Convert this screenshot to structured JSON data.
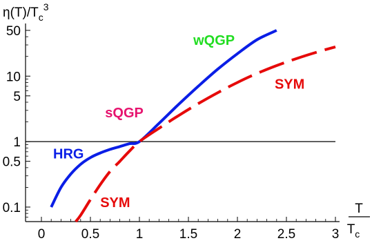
{
  "chart_data": {
    "type": "line",
    "title": "η(T)/T_c³",
    "y_label_text": {
      "main": "η(T)/T",
      "sub": "c",
      "sup": "3"
    },
    "x_label_text": {
      "numerator": "T",
      "denominator": "T",
      "den_sub": "c"
    },
    "x_scale": "linear",
    "y_scale": "log",
    "xlim": [
      0,
      3
    ],
    "ylim": [
      0.06,
      50
    ],
    "grid": false,
    "legend": "none",
    "x_ticks": [
      0,
      0.5,
      1,
      1.5,
      2,
      2.5,
      3
    ],
    "x_tick_labels": [
      "0",
      "0.5",
      "1",
      "1.5",
      "2",
      "2.5",
      "3"
    ],
    "y_ticks": [
      0.1,
      0.5,
      1,
      5,
      10,
      50
    ],
    "y_tick_labels": [
      "0.1",
      "0.5",
      "1",
      "5",
      "10",
      "50"
    ],
    "reference_line": {
      "y": 1,
      "color": "#000000"
    },
    "series": [
      {
        "color": "#0a1ee6",
        "style": "solid",
        "x": [
          0.1,
          0.2,
          0.3,
          0.4,
          0.5,
          0.6,
          0.7,
          0.8,
          0.9,
          1.0,
          1.2,
          1.4,
          1.6,
          1.8,
          2.0,
          2.2,
          2.4
        ],
        "y": [
          0.1,
          0.2,
          0.32,
          0.45,
          0.57,
          0.67,
          0.76,
          0.84,
          0.93,
          1.0,
          1.9,
          3.7,
          7.0,
          12.8,
          22,
          36,
          50
        ]
      },
      {
        "color": "#e60a0a",
        "style": "dashed",
        "x": [
          0.35,
          0.4,
          0.5,
          0.6,
          0.7,
          0.8,
          0.9,
          1.0,
          1.2,
          1.4,
          1.6,
          1.8,
          2.0,
          2.2,
          2.4,
          2.6,
          2.8,
          3.0
        ],
        "y": [
          0.06,
          0.075,
          0.13,
          0.22,
          0.35,
          0.5,
          0.72,
          1.0,
          1.6,
          2.5,
          3.8,
          5.6,
          8.0,
          11,
          14.5,
          18.5,
          23,
          28
        ]
      }
    ],
    "annotations": [
      {
        "text": "HRG",
        "color": "#0a1ee6"
      },
      {
        "text": "sQGP",
        "color": "#e6136e"
      },
      {
        "text": "wQGP",
        "color": "#22dd22"
      },
      {
        "text": "SYM",
        "color": "#e60a0a"
      },
      {
        "text": "SYM",
        "color": "#e60a0a"
      }
    ]
  }
}
